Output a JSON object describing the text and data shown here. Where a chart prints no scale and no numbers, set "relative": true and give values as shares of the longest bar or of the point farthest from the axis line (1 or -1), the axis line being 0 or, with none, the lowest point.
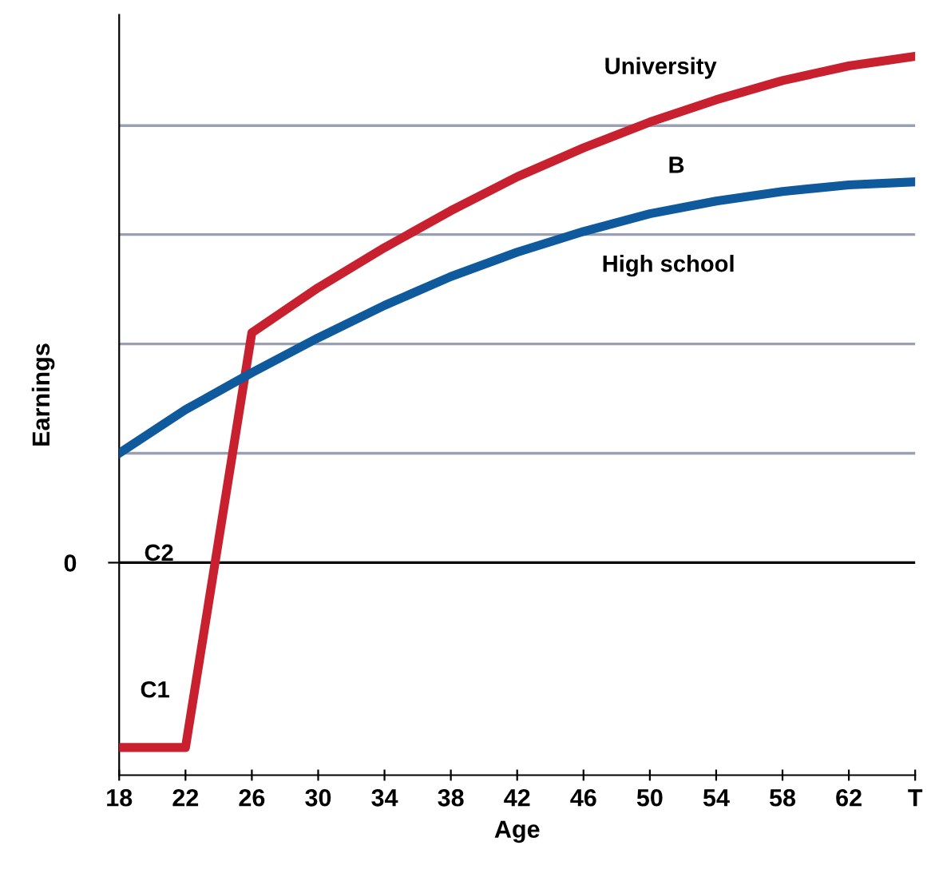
{
  "chart_data": {
    "type": "line",
    "relative": true,
    "xlabel": "Age",
    "ylabel": "Earnings",
    "xlim": [
      18,
      66
    ],
    "xticks": [
      18,
      22,
      26,
      30,
      34,
      38,
      42,
      46,
      50,
      54,
      58,
      62,
      {
        "value": 66,
        "label": "T"
      }
    ],
    "series": [
      {
        "color": "#c8202f",
        "x": [
          18,
          22,
          26,
          30,
          34,
          38,
          42,
          46,
          50,
          54,
          58,
          62,
          66
        ],
        "values": [
          -0.365,
          -0.365,
          0.454,
          0.543,
          0.622,
          0.695,
          0.762,
          0.819,
          0.87,
          0.914,
          0.952,
          0.981,
          1.0
        ]
      },
      {
        "color": "#0f5a9c",
        "x": [
          18,
          22,
          26,
          30,
          34,
          38,
          42,
          46,
          50,
          54,
          58,
          62,
          66
        ],
        "values": [
          0.216,
          0.302,
          0.375,
          0.444,
          0.508,
          0.565,
          0.613,
          0.654,
          0.689,
          0.714,
          0.733,
          0.746,
          0.752
        ]
      }
    ],
    "ref_lines": [
      {
        "axis": "y",
        "value": 0,
        "label": "0",
        "color": "#000000"
      },
      {
        "axis": "y",
        "value": 0.216,
        "color": "#9aa0b4"
      },
      {
        "axis": "y",
        "value": 0.432,
        "color": "#9aa0b4"
      },
      {
        "axis": "y",
        "value": 0.648,
        "color": "#9aa0b4"
      },
      {
        "axis": "y",
        "value": 0.863,
        "color": "#9aa0b4"
      }
    ],
    "annotations": [
      "University",
      "B",
      "High school",
      "C2",
      "C1"
    ],
    "grid": false,
    "marker": "none",
    "line_style": "solid"
  }
}
